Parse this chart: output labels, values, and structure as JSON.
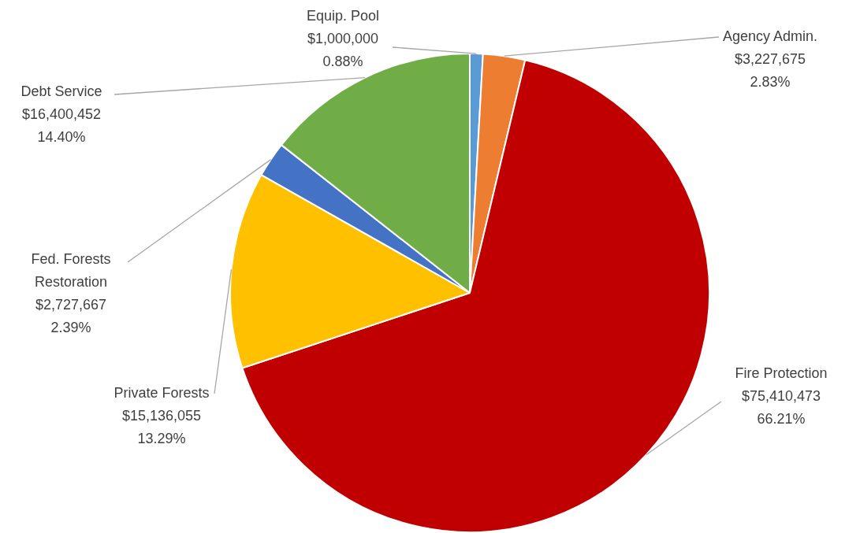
{
  "chart_data": {
    "type": "pie",
    "categories": [
      "Equip. Pool",
      "Agency Admin.",
      "Fire Protection",
      "Private Forests",
      "Fed. Forests Restoration",
      "Debt Service"
    ],
    "values": [
      1000000,
      3227675,
      75410473,
      15136055,
      2727667,
      16400452
    ],
    "colors": [
      "#5b9bd5",
      "#ed7d31",
      "#c00000",
      "#ffc000",
      "#4472c4",
      "#70ad47"
    ],
    "value_labels": [
      "$1,000,000\n0.88%",
      "$3,227,675\n2.83%",
      "$75,410,473\n66.21%",
      "$15,136,055\n13.29%",
      "$2,727,667\n2.39%",
      "$16,400,452\n14.40%"
    ]
  }
}
